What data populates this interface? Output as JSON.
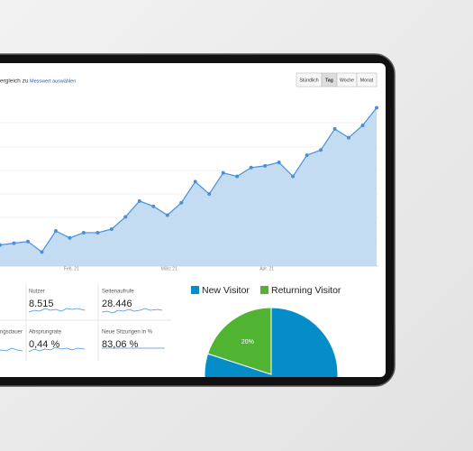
{
  "header": {
    "compare": "ergleich zu",
    "metric_link": "Messwert auswählen",
    "buttons": [
      "Stündlich",
      "Tag",
      "Woche",
      "Monat"
    ]
  },
  "metrics": [
    {
      "label": "Nutzer",
      "value": "8.515"
    },
    {
      "label": "Seitenaufrufe",
      "value": "28.446"
    },
    {
      "label": "ngsdauer"
    },
    {
      "label": "Absprungrate",
      "value": "0,44 %"
    },
    {
      "label": "Neue Sitzungen in %",
      "value": "83,06 %"
    }
  ],
  "chart_data": [
    {
      "type": "line",
      "color": "#4a90d9",
      "categories": [
        null,
        null,
        null,
        null,
        null,
        "Feb. 21",
        null,
        null,
        null,
        null,
        null,
        null,
        "März 21",
        null,
        null,
        null,
        null,
        null,
        null,
        "Apr. 21",
        null,
        null,
        null,
        null,
        null,
        null,
        null,
        null
      ],
      "values": [
        12,
        13,
        14,
        8,
        20,
        16,
        19,
        19,
        21,
        28,
        37,
        34,
        29,
        36,
        48,
        41,
        53,
        51,
        56,
        57,
        59,
        51,
        63,
        66,
        78,
        73,
        80,
        90
      ],
      "ylim": [
        0,
        100
      ]
    },
    {
      "type": "pie",
      "series": [
        {
          "name": "New Visitor",
          "color": "#058dc7"
        },
        {
          "name": "Returning Visitor",
          "color": "#50b432"
        }
      ],
      "values": [
        80,
        20
      ],
      "value_labels": [
        null,
        "20%"
      ]
    }
  ]
}
